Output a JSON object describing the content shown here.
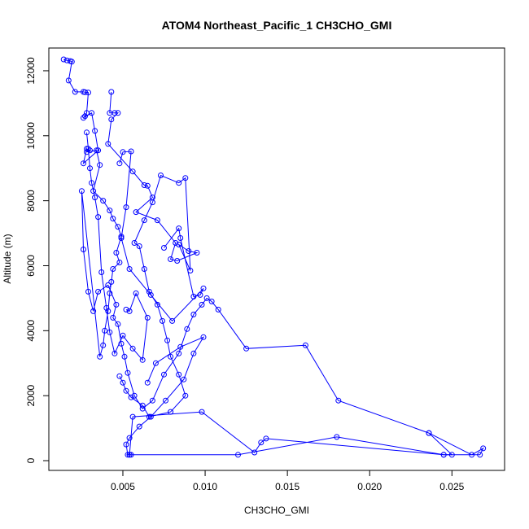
{
  "chart_data": {
    "type": "line",
    "title": "ATOM4 Northeast_Pacific_1 CH3CHO_GMI",
    "xlabel": "CH3CHO_GMI",
    "ylabel": "Altitude (m)",
    "xlim": [
      0.0005,
      0.0282
    ],
    "ylim": [
      -300,
      12700
    ],
    "x_ticks": [
      0.005,
      0.01,
      0.015,
      0.02,
      0.025
    ],
    "x_tick_labels": [
      "0.005",
      "0.010",
      "0.015",
      "0.020",
      "0.025"
    ],
    "y_ticks": [
      0,
      2000,
      4000,
      6000,
      8000,
      10000,
      12000
    ],
    "y_tick_labels": [
      "0",
      "2000",
      "4000",
      "6000",
      "8000",
      "10000",
      "12000"
    ],
    "series_color": "#0000ff",
    "series": [
      {
        "x": [
          0.0014,
          0.0016,
          0.0018,
          0.0019,
          0.0017,
          0.0021,
          0.0026,
          0.0027,
          0.0029,
          0.0028,
          0.0027,
          0.0026,
          0.0031,
          0.0033,
          0.0035,
          0.0026,
          0.0028,
          0.003,
          0.0028,
          0.0034,
          0.0036,
          0.0032,
          0.0038,
          0.0042,
          0.0044,
          0.0047,
          0.0049,
          0.0046,
          0.0048,
          0.0044,
          0.0043,
          0.0042,
          0.0041,
          0.0039,
          0.0038,
          0.0036,
          0.0025,
          0.0026,
          0.0029,
          0.0032,
          0.0035,
          0.0041,
          0.0046,
          0.0044,
          0.0047,
          0.0049,
          0.0051,
          0.0053,
          0.0057,
          0.0062,
          0.0068,
          0.0075,
          0.0084,
          0.0089,
          0.0093,
          0.0098,
          0.0101,
          0.0104,
          0.0108,
          0.0125,
          0.0161,
          0.0181,
          0.0236,
          0.0262,
          0.0269,
          0.0267,
          0.0245,
          0.0137,
          0.0134,
          0.013,
          0.0098,
          0.0056,
          0.0054,
          0.0055
        ],
        "y": [
          12350,
          12320,
          12300,
          12280,
          11700,
          11350,
          11350,
          11340,
          11330,
          10700,
          10600,
          10550,
          10700,
          10150,
          9550,
          9150,
          9600,
          9550,
          9500,
          9550,
          9100,
          8300,
          8000,
          7700,
          7450,
          7200,
          6900,
          6400,
          6100,
          5900,
          5500,
          5150,
          4600,
          4000,
          3550,
          3200,
          8300,
          6500,
          5200,
          4600,
          5200,
          5400,
          4800,
          4400,
          4200,
          3600,
          3200,
          2700,
          2000,
          1600,
          1850,
          2650,
          3300,
          4050,
          4500,
          4800,
          5000,
          4900,
          4650,
          3450,
          3550,
          1850,
          850,
          180,
          380,
          180,
          180,
          680,
          560,
          250,
          1500,
          1350,
          180,
          180
        ]
      },
      {
        "x": [
          0.0043,
          0.0042,
          0.0045,
          0.0047,
          0.0043,
          0.0041,
          0.0056,
          0.0063,
          0.0065,
          0.0068,
          0.0058,
          0.0071,
          0.0082,
          0.0079,
          0.0083,
          0.0095,
          0.009,
          0.0084,
          0.0091,
          0.0088,
          0.0084,
          0.0073,
          0.0068,
          0.0063,
          0.0057,
          0.006,
          0.0063,
          0.0066,
          0.0071,
          0.0074,
          0.0077,
          0.0079,
          0.0084,
          0.0088,
          0.0079,
          0.0066,
          0.0062,
          0.0055,
          0.0052,
          0.005,
          0.0048
        ],
        "y": [
          11350,
          10700,
          10700,
          10700,
          10500,
          9750,
          8900,
          8480,
          8460,
          8100,
          7650,
          7400,
          6700,
          6200,
          6150,
          6400,
          6450,
          6650,
          5850,
          8700,
          8550,
          8780,
          7950,
          7400,
          6700,
          6600,
          5900,
          5200,
          4800,
          4300,
          3700,
          3200,
          2650,
          2000,
          1500,
          1350,
          1700,
          1950,
          2150,
          2400,
          2600
        ]
      },
      {
        "x": [
          0.0052,
          0.0054,
          0.0058,
          0.0065,
          0.0062,
          0.0056,
          0.005,
          0.0045,
          0.0042,
          0.004,
          0.0037,
          0.0035,
          0.0033,
          0.0031,
          0.003,
          0.0029,
          0.0028
        ],
        "y": [
          4650,
          4600,
          5150,
          4400,
          3100,
          3450,
          3850,
          3300,
          3950,
          4700,
          5800,
          7500,
          8100,
          8550,
          9000,
          9600,
          10100
        ]
      },
      {
        "x": [
          0.0065,
          0.007,
          0.0085,
          0.0099,
          0.0093,
          0.0087,
          0.0076,
          0.0067,
          0.006,
          0.0054,
          0.0052,
          0.0053,
          0.0054,
          0.012,
          0.018,
          0.0245,
          0.025,
          0.0236
        ],
        "y": [
          2400,
          3000,
          3500,
          3800,
          3300,
          2500,
          1850,
          1350,
          1050,
          700,
          500,
          180,
          180,
          180,
          730,
          180,
          180,
          850
        ]
      },
      {
        "x": [
          0.0048,
          0.005,
          0.0055,
          0.0052,
          0.0049,
          0.0054,
          0.0067,
          0.008,
          0.0099,
          0.0097,
          0.0093,
          0.0085,
          0.0084,
          0.0075
        ],
        "y": [
          9150,
          9500,
          9520,
          7800,
          6850,
          5900,
          5100,
          4300,
          5300,
          5100,
          5050,
          6850,
          7150,
          6550
        ]
      }
    ]
  }
}
